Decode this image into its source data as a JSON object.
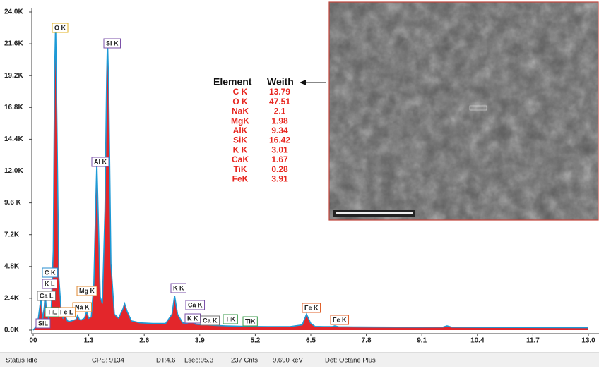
{
  "chart_data": {
    "type": "spectrum",
    "color": "#e3262b",
    "line_color": "#1d9ad6",
    "xlim": [
      0,
      13.0
    ],
    "xticks": [
      {
        "value": 0,
        "label": "00"
      },
      1.3,
      2.6,
      3.9,
      5.2,
      6.5,
      7.8,
      9.1,
      10.4,
      11.7,
      {
        "value": 13.0,
        "label": "13.0"
      }
    ],
    "ylim": [
      0,
      24000
    ],
    "yticks": [
      {
        "value": 0,
        "label": "0.0K"
      },
      {
        "value": 2400,
        "label": "2.4K"
      },
      {
        "value": 4800,
        "label": "4.8K"
      },
      {
        "value": 7200,
        "label": "7.2K"
      },
      {
        "value": 9600,
        "label": "9.6 K"
      },
      {
        "value": 12000,
        "label": "12.0K"
      },
      {
        "value": 14400,
        "label": "14.4K"
      },
      {
        "value": 16800,
        "label": "16.8K"
      },
      {
        "value": 19200,
        "label": "19.2K"
      },
      {
        "value": 21600,
        "label": "21.6K"
      },
      {
        "value": 24000,
        "label": "24.0K"
      }
    ],
    "x": [
      0,
      0.1,
      0.18,
      0.22,
      0.26,
      0.28,
      0.31,
      0.36,
      0.42,
      0.47,
      0.5,
      0.525,
      0.55,
      0.6,
      0.66,
      0.7,
      0.75,
      0.8,
      0.85,
      0.9,
      0.95,
      1.0,
      1.04,
      1.08,
      1.12,
      1.2,
      1.25,
      1.3,
      1.36,
      1.42,
      1.46,
      1.49,
      1.52,
      1.57,
      1.62,
      1.68,
      1.72,
      1.74,
      1.77,
      1.82,
      1.9,
      2.0,
      2.1,
      2.14,
      2.2,
      2.3,
      2.5,
      2.8,
      3.1,
      3.25,
      3.31,
      3.38,
      3.5,
      3.6,
      3.69,
      3.8,
      4.0,
      4.3,
      4.51,
      4.7,
      5.0,
      5.5,
      6.0,
      6.3,
      6.4,
      6.5,
      6.6,
      6.8,
      7.0,
      7.06,
      7.15,
      7.5,
      8.0,
      9.0,
      9.6,
      9.69,
      9.8,
      10.5,
      11.5,
      12.5,
      13.0
    ],
    "values": [
      0,
      400,
      2400,
      800,
      1800,
      2800,
      1500,
      900,
      1300,
      6000,
      19000,
      23200,
      17000,
      4000,
      1200,
      900,
      1100,
      700,
      650,
      700,
      750,
      800,
      1100,
      800,
      750,
      900,
      1400,
      900,
      1000,
      3500,
      9000,
      12700,
      9000,
      2500,
      2000,
      9000,
      19000,
      22000,
      18000,
      5000,
      1200,
      900,
      1600,
      2000,
      1400,
      700,
      550,
      500,
      500,
      1200,
      2600,
      1200,
      550,
      500,
      700,
      450,
      400,
      350,
      320,
      300,
      280,
      260,
      260,
      400,
      1200,
      500,
      280,
      260,
      260,
      320,
      250,
      240,
      230,
      220,
      230,
      320,
      220,
      210,
      200,
      190,
      180
    ],
    "annotations": [
      {
        "text": "O K",
        "color": "#e0b020"
      },
      {
        "text": "Si K",
        "color": "#7a4fa8"
      },
      {
        "text": "Al K",
        "color": "#7a4fa8"
      },
      {
        "text": "C K",
        "color": "#2a8fd0"
      },
      {
        "text": "K L",
        "color": "#7a4fa8"
      },
      {
        "text": "Ca L",
        "color": "#777777"
      },
      {
        "text": "Mg K",
        "color": "#e08a30"
      },
      {
        "text": "Na K",
        "color": "#e08a30"
      },
      {
        "text": "Fe L",
        "color": "#e08a30"
      },
      {
        "text": "TiL",
        "color": "#3a9a4a"
      },
      {
        "text": "SiL",
        "color": "#7a4fa8"
      },
      {
        "text": "K K",
        "color": "#7a4fa8"
      },
      {
        "text": "Ca K",
        "color": "#7a4fa8"
      },
      {
        "text": "K K",
        "color": "#7a4fa8"
      },
      {
        "text": "Ca K",
        "color": "#777777"
      },
      {
        "text": "TiK",
        "color": "#3a9a4a"
      },
      {
        "text": "TiK",
        "color": "#3a9a4a"
      },
      {
        "text": "Fe K",
        "color": "#e0602a"
      },
      {
        "text": "Fe K",
        "color": "#e0602a"
      }
    ],
    "table": {
      "header": [
        "Element",
        "Weith"
      ],
      "rows": [
        [
          "C K",
          13.79
        ],
        [
          "O K",
          47.51
        ],
        [
          "NaK",
          2.1
        ],
        [
          "MgK",
          1.98
        ],
        [
          "AlK",
          9.34
        ],
        [
          "SiK",
          16.42
        ],
        [
          "K K",
          3.01
        ],
        [
          "CaK",
          1.67
        ],
        [
          "TiK",
          0.28
        ],
        [
          "FeK",
          3.91
        ]
      ]
    }
  },
  "status_bar": [
    "Status Idle",
    "CPS: 9134",
    "DT:4.6",
    "Lsec:95.3",
    "237 Cnts",
    "9.690 keV",
    "Det: Octane Plus"
  ]
}
